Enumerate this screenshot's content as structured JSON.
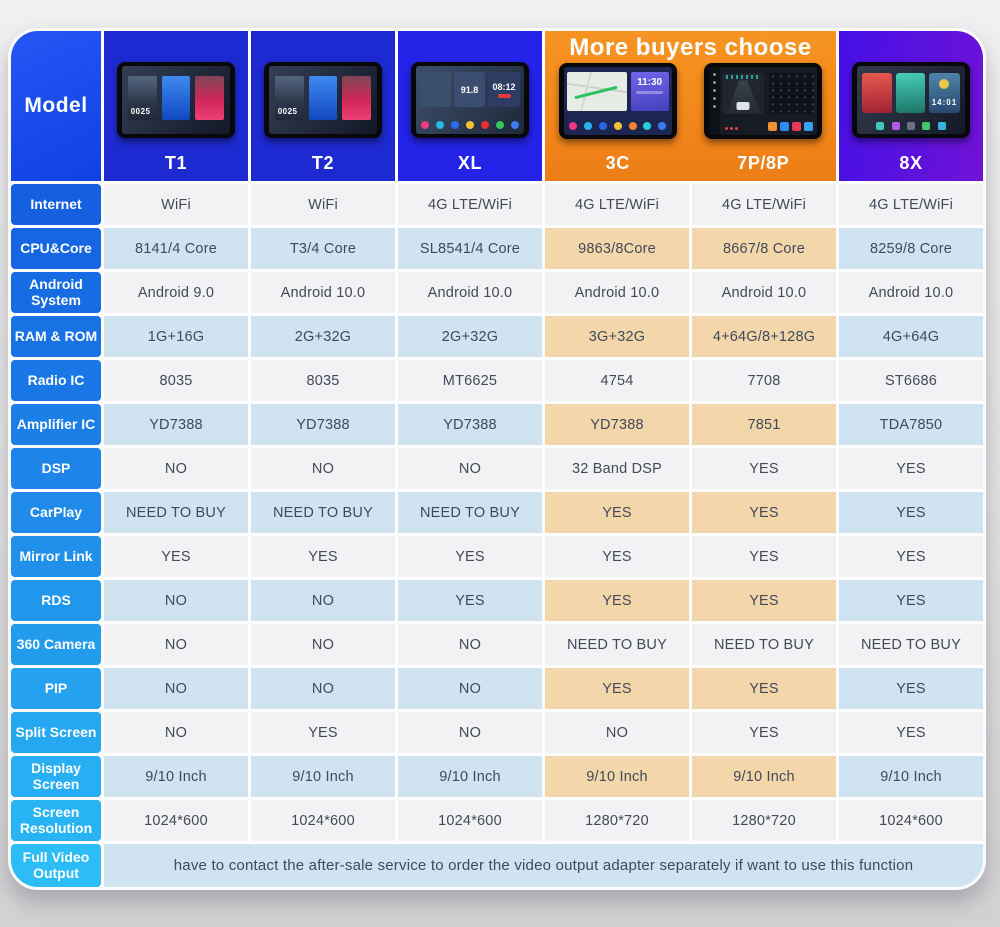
{
  "chart_data": {
    "type": "table",
    "banner": "More buyers choose",
    "corner_label": "Model",
    "columns": [
      {
        "name": "T1",
        "highlight": false,
        "screen_time": "0025"
      },
      {
        "name": "T2",
        "highlight": false,
        "screen_time": "0025"
      },
      {
        "name": "XL",
        "highlight": false,
        "screen_freq": "91.8",
        "screen_time": "08:12"
      },
      {
        "name": "3C",
        "highlight": true,
        "screen_time": "11:30"
      },
      {
        "name": "7P/8P",
        "highlight": true
      },
      {
        "name": "8X",
        "highlight": false,
        "screen_time": "14:01"
      }
    ],
    "rows": [
      {
        "label": "Internet",
        "values": [
          "WiFi",
          "WiFi",
          "4G LTE/WiFi",
          "4G LTE/WiFi",
          "4G LTE/WiFi",
          "4G LTE/WiFi"
        ]
      },
      {
        "label": "CPU&Core",
        "values": [
          "8141/4 Core",
          "T3/4 Core",
          "SL8541/4 Core",
          "9863/8Core",
          "8667/8 Core",
          "8259/8 Core"
        ]
      },
      {
        "label": "Android System",
        "values": [
          "Android 9.0",
          "Android 10.0",
          "Android 10.0",
          "Android 10.0",
          "Android 10.0",
          "Android 10.0"
        ]
      },
      {
        "label": "RAM & ROM",
        "values": [
          "1G+16G",
          "2G+32G",
          "2G+32G",
          "3G+32G",
          "4+64G/8+128G",
          "4G+64G"
        ]
      },
      {
        "label": "Radio IC",
        "values": [
          "8035",
          "8035",
          "MT6625",
          "4754",
          "7708",
          "ST6686"
        ]
      },
      {
        "label": "Amplifier IC",
        "values": [
          "YD7388",
          "YD7388",
          "YD7388",
          "YD7388",
          "7851",
          "TDA7850"
        ]
      },
      {
        "label": "DSP",
        "values": [
          "NO",
          "NO",
          "NO",
          "32 Band DSP",
          "YES",
          "YES"
        ]
      },
      {
        "label": "CarPlay",
        "values": [
          "NEED TO BUY",
          "NEED TO BUY",
          "NEED TO BUY",
          "YES",
          "YES",
          "YES"
        ]
      },
      {
        "label": "Mirror Link",
        "values": [
          "YES",
          "YES",
          "YES",
          "YES",
          "YES",
          "YES"
        ]
      },
      {
        "label": "RDS",
        "values": [
          "NO",
          "NO",
          "YES",
          "YES",
          "YES",
          "YES"
        ]
      },
      {
        "label": "360 Camera",
        "values": [
          "NO",
          "NO",
          "NO",
          "NEED TO BUY",
          "NEED TO BUY",
          "NEED TO BUY"
        ]
      },
      {
        "label": "PIP",
        "values": [
          "NO",
          "NO",
          "NO",
          "YES",
          "YES",
          "YES"
        ]
      },
      {
        "label": "Split Screen",
        "values": [
          "NO",
          "YES",
          "NO",
          "NO",
          "YES",
          "YES"
        ]
      },
      {
        "label": "Display Screen",
        "values": [
          "9/10 Inch",
          "9/10 Inch",
          "9/10 Inch",
          "9/10 Inch",
          "9/10 Inch",
          "9/10 Inch"
        ]
      },
      {
        "label": "Screen Resolution",
        "values": [
          "1024*600",
          "1024*600",
          "1024*600",
          "1280*720",
          "1280*720",
          "1024*600"
        ]
      }
    ],
    "footer": {
      "label": "Full Video Output",
      "note": "have to contact the after-sale service to order the video output adapter separately if want to use this function"
    }
  },
  "colors": {
    "highlight_header_orange": "#f08220",
    "highlight_cell_tan": "#f3d6a9",
    "shaded_cell_blue": "#cfe3f0",
    "plain_cell": "#f2f1f4",
    "label_blue_top": "#1560e0",
    "label_blue_bottom": "#28b4f4",
    "header_blue": "#1d2ad2",
    "header_xl_blue": "#2423e8",
    "header_8x_purple": "#6012dc",
    "model_cell_blue": "#1347ee"
  }
}
